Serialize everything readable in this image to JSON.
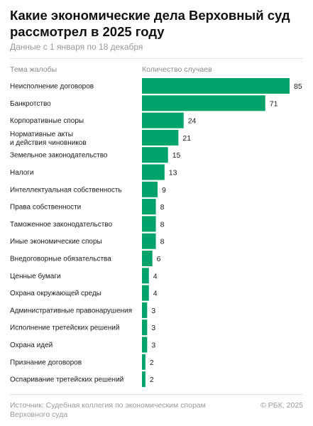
{
  "header": {
    "title": "Какие экономические дела Верховный суд рассмотрел в 2025 году",
    "subtitle": "Данные с 1 января по 18 декабря"
  },
  "columns": {
    "category": "Тема жалобы",
    "value": "Количество случаев"
  },
  "chart_data": {
    "type": "bar",
    "orientation": "horizontal",
    "title": "Какие экономические дела Верховный суд рассмотрел в 2025 году",
    "subtitle": "Данные с 1 января по 18 декабря",
    "xlabel": "Количество случаев",
    "ylabel": "Тема жалобы",
    "xlim": [
      0,
      85
    ],
    "grid": false,
    "bar_color": "#00a36a",
    "categories": [
      [
        "Неисполнение договоров"
      ],
      [
        "Банкротство"
      ],
      [
        "Корпоративные споры"
      ],
      [
        "Нормативные акты",
        "и действия чиновников"
      ],
      [
        "Земельное законодательство"
      ],
      [
        "Налоги"
      ],
      [
        "Интеллектуальная собственность"
      ],
      [
        "Права собственности"
      ],
      [
        "Таможенное законодательство"
      ],
      [
        "Иные экономические споры"
      ],
      [
        "Внедоговорные обязательства"
      ],
      [
        "Ценные бумаги"
      ],
      [
        "Охрана окружающей среды"
      ],
      [
        "Административные правонарушения"
      ],
      [
        "Исполнение третейских решений"
      ],
      [
        "Охрана идей"
      ],
      [
        "Признание договоров"
      ],
      [
        "Оспаривание третейских решений"
      ]
    ],
    "values": [
      85,
      71,
      24,
      21,
      15,
      13,
      9,
      8,
      8,
      8,
      6,
      4,
      4,
      3,
      3,
      3,
      2,
      2
    ]
  },
  "footer": {
    "source_line1": "Источник: Судебная коллегия по экономическим спорам",
    "source_line2": "Верховного суда",
    "copyright": "© РБК, 2025"
  }
}
